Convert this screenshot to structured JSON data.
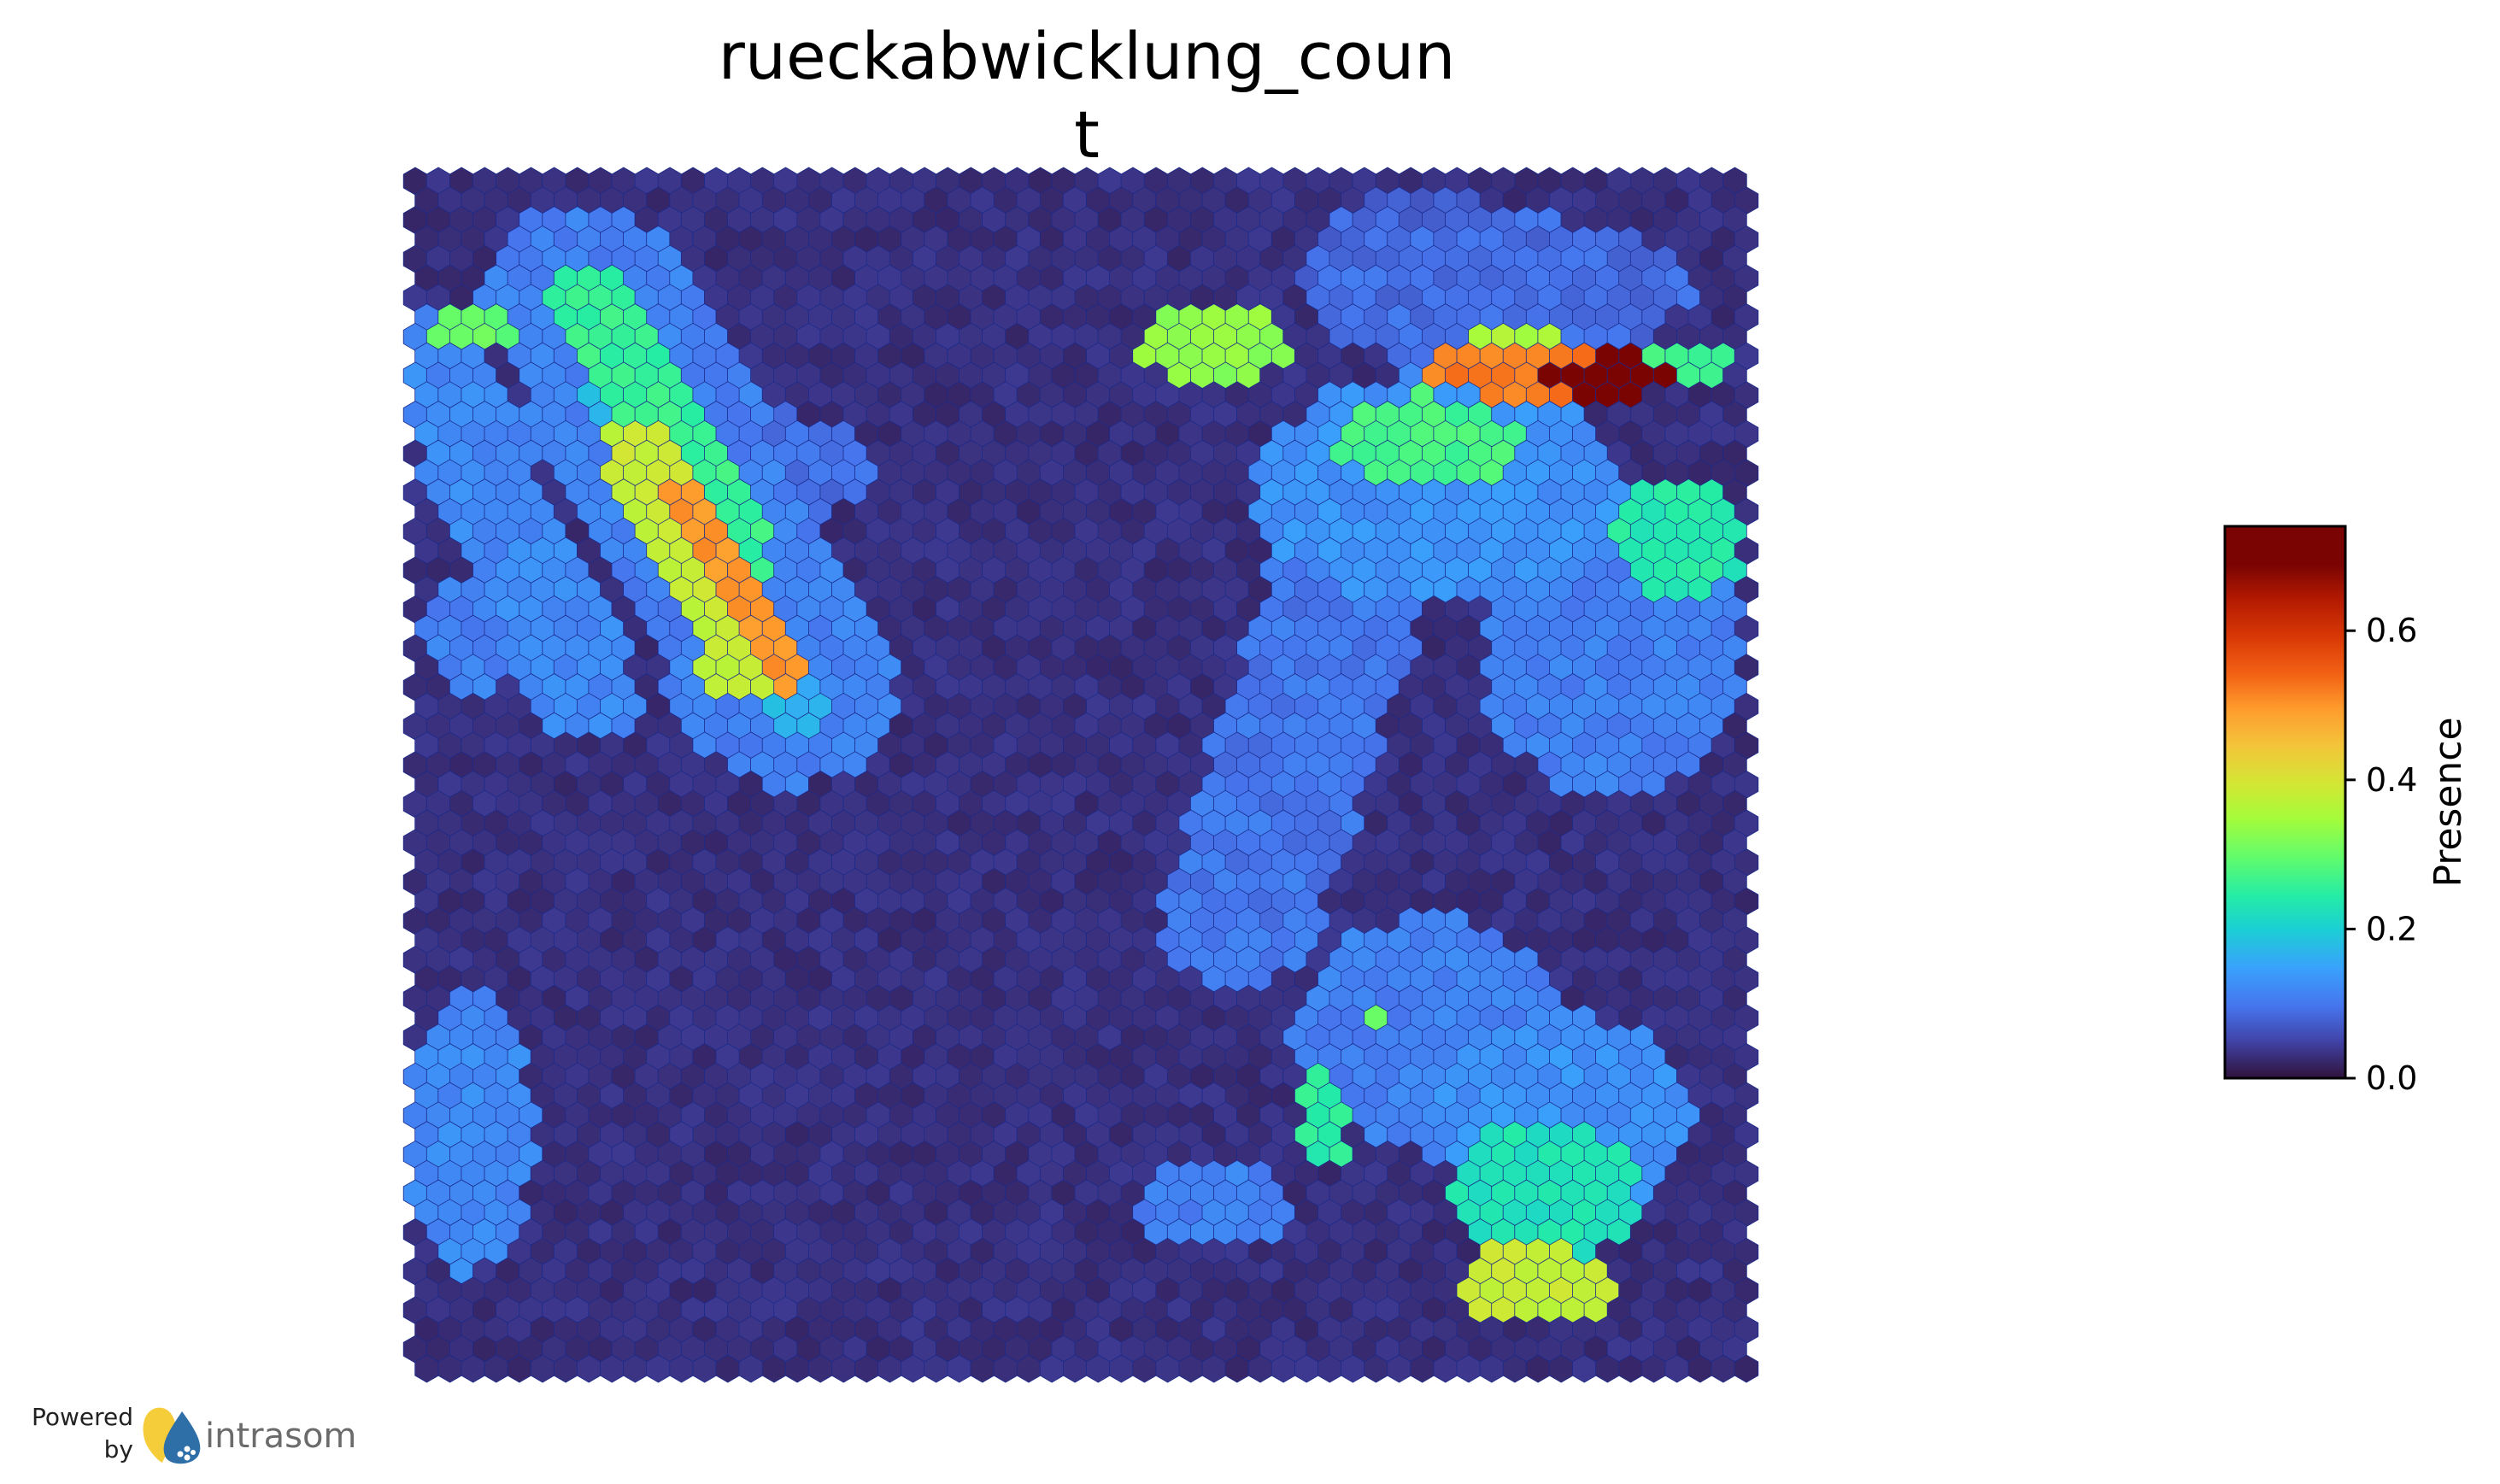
{
  "chart_data": {
    "type": "heatmap",
    "grid": "hexagonal self-organizing map",
    "title_lines": [
      "rueckabwicklung_coun",
      "t"
    ],
    "colorbar": {
      "label": "Presence",
      "range": [
        0.0,
        0.74
      ],
      "ticks": [
        0.0,
        0.2,
        0.4,
        0.6
      ],
      "tick_labels": [
        "0.0",
        "0.2",
        "0.4",
        "0.6"
      ],
      "colormap": "turbo"
    },
    "map": {
      "columns": 58,
      "rows": 62,
      "background_value": 0.03,
      "regions": [
        {
          "shape": "line",
          "points": [
            [
              0.12,
              0.1
            ],
            [
              0.28,
              0.44
            ]
          ],
          "radius": 0.025,
          "value": 0.17
        },
        {
          "shape": "line",
          "points": [
            [
              0.13,
              0.1
            ],
            [
              0.28,
              0.43
            ]
          ],
          "radius": 0.08,
          "value": 0.11
        },
        {
          "shape": "line",
          "points": [
            [
              0.01,
              0.15
            ],
            [
              0.13,
              0.43
            ]
          ],
          "radius": 0.04,
          "value": 0.12
        },
        {
          "shape": "ellipse",
          "center": [
            0.05,
            0.38
          ],
          "radii": [
            0.05,
            0.05
          ],
          "value": 0.11
        },
        {
          "shape": "ellipse",
          "center": [
            0.23,
            0.24
          ],
          "radii": [
            0.12,
            0.05
          ],
          "value": 0.09
        },
        {
          "shape": "line",
          "points": [
            [
              0.13,
              0.1
            ],
            [
              0.24,
              0.32
            ]
          ],
          "radius": 0.03,
          "value": 0.26
        },
        {
          "shape": "line",
          "points": [
            [
              0.17,
              0.23
            ],
            [
              0.25,
              0.41
            ]
          ],
          "radius": 0.03,
          "value": 0.38
        },
        {
          "shape": "line",
          "points": [
            [
              0.2,
              0.27
            ],
            [
              0.28,
              0.42
            ]
          ],
          "radius": 0.013,
          "value": 0.5
        },
        {
          "shape": "ellipse",
          "center": [
            0.04,
            0.125
          ],
          "radii": [
            0.035,
            0.02
          ],
          "value": 0.3
        },
        {
          "shape": "ellipse",
          "center": [
            0.6,
            0.14
          ],
          "radii": [
            0.055,
            0.035
          ],
          "value": 0.33
        },
        {
          "shape": "ellipse",
          "center": [
            0.76,
            0.08
          ],
          "radii": [
            0.1,
            0.07
          ],
          "value": 0.08
        },
        {
          "shape": "ellipse",
          "center": [
            0.82,
            0.09
          ],
          "radii": [
            0.14,
            0.06
          ],
          "value": 0.09
        },
        {
          "shape": "ellipse",
          "center": [
            0.77,
            0.26
          ],
          "radii": [
            0.14,
            0.1
          ],
          "value": 0.13
        },
        {
          "shape": "ellipse",
          "center": [
            0.76,
            0.22
          ],
          "radii": [
            0.07,
            0.04
          ],
          "value": 0.27
        },
        {
          "shape": "ellipse",
          "center": [
            0.82,
            0.14
          ],
          "radii": [
            0.04,
            0.02
          ],
          "value": 0.35
        },
        {
          "shape": "ellipse",
          "center": [
            0.84,
            0.16
          ],
          "radii": [
            0.08,
            0.025
          ],
          "value": 0.52
        },
        {
          "shape": "ellipse",
          "center": [
            0.9,
            0.165
          ],
          "radii": [
            0.055,
            0.018
          ],
          "value": 0.7
        },
        {
          "shape": "ellipse",
          "center": [
            0.96,
            0.15
          ],
          "radii": [
            0.04,
            0.015
          ],
          "value": 0.27
        },
        {
          "shape": "ellipse",
          "center": [
            0.95,
            0.3
          ],
          "radii": [
            0.05,
            0.05
          ],
          "value": 0.24
        },
        {
          "shape": "ellipse",
          "center": [
            0.9,
            0.4
          ],
          "radii": [
            0.1,
            0.12
          ],
          "value": 0.11
        },
        {
          "shape": "line",
          "points": [
            [
              0.72,
              0.28
            ],
            [
              0.62,
              0.62
            ]
          ],
          "radius": 0.06,
          "value": 0.1
        },
        {
          "shape": "ellipse",
          "center": [
            0.76,
            0.72
          ],
          "radii": [
            0.1,
            0.1
          ],
          "value": 0.11
        },
        {
          "shape": "ellipse",
          "center": [
            0.86,
            0.79
          ],
          "radii": [
            0.1,
            0.09
          ],
          "value": 0.13
        },
        {
          "shape": "ellipse",
          "center": [
            0.85,
            0.85
          ],
          "radii": [
            0.07,
            0.06
          ],
          "value": 0.23
        },
        {
          "shape": "ellipse",
          "center": [
            0.84,
            0.93
          ],
          "radii": [
            0.06,
            0.035
          ],
          "value": 0.38
        },
        {
          "shape": "ellipse",
          "center": [
            0.685,
            0.79
          ],
          "radii": [
            0.02,
            0.04
          ],
          "value": 0.25
        },
        {
          "shape": "ellipse",
          "center": [
            0.72,
            0.71
          ],
          "radii": [
            0.012,
            0.01
          ],
          "value": 0.3
        },
        {
          "shape": "ellipse",
          "center": [
            0.6,
            0.86
          ],
          "radii": [
            0.06,
            0.04
          ],
          "value": 0.11
        },
        {
          "shape": "ellipse",
          "center": [
            0.04,
            0.8
          ],
          "radii": [
            0.05,
            0.12
          ],
          "value": 0.12
        }
      ]
    }
  },
  "branding": {
    "powered": "Powered",
    "by": "by",
    "name": "intrasom"
  }
}
